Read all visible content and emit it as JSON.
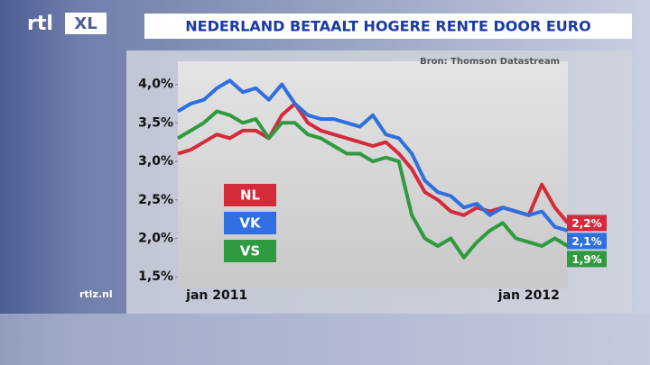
{
  "logo": {
    "text": "rtl",
    "badge": "XL"
  },
  "footer": "rtlz.nl",
  "chart_data": {
    "type": "line",
    "title": "NEDERLAND BETAALT HOGERE RENTE DOOR EURO",
    "source": "Bron: Thomson Datastream",
    "categories": [
      null,
      null,
      null,
      "jan 2011",
      null,
      null,
      null,
      null,
      null,
      null,
      null,
      null,
      null,
      null,
      null,
      null,
      null,
      null,
      null,
      null,
      null,
      null,
      null,
      null,
      null,
      null,
      null,
      "jan 2012",
      null,
      null,
      null
    ],
    "ylim": [
      1.35,
      4.3
    ],
    "yticks": [
      {
        "value": 1.5,
        "label": "1,5%"
      },
      {
        "value": 2.0,
        "label": "2,0%"
      },
      {
        "value": 2.5,
        "label": "2,5%"
      },
      {
        "value": 3.0,
        "label": "3,0%"
      },
      {
        "value": 3.5,
        "label": "3,5%"
      },
      {
        "value": 4.0,
        "label": "4,0%"
      }
    ],
    "grid": false,
    "series": [
      {
        "name": "NL",
        "color": "#d42b3c",
        "values": [
          3.1,
          3.15,
          3.25,
          3.35,
          3.3,
          3.4,
          3.4,
          3.3,
          3.6,
          3.75,
          3.5,
          3.4,
          3.35,
          3.3,
          3.25,
          3.2,
          3.25,
          3.1,
          2.9,
          2.6,
          2.5,
          2.35,
          2.3,
          2.4,
          2.35,
          2.4,
          2.35,
          2.3,
          2.7,
          2.4,
          2.2
        ],
        "value_labels": [
          null,
          null,
          null,
          null,
          null,
          null,
          null,
          null,
          null,
          null,
          null,
          null,
          null,
          null,
          null,
          null,
          null,
          null,
          null,
          null,
          null,
          null,
          null,
          null,
          null,
          null,
          null,
          null,
          null,
          null,
          "2,2%"
        ]
      },
      {
        "name": "VK",
        "color": "#2f6fe0",
        "values": [
          3.65,
          3.75,
          3.8,
          3.95,
          4.05,
          3.9,
          3.95,
          3.8,
          4.0,
          3.75,
          3.6,
          3.55,
          3.55,
          3.5,
          3.45,
          3.6,
          3.35,
          3.3,
          3.1,
          2.75,
          2.6,
          2.55,
          2.4,
          2.45,
          2.3,
          2.4,
          2.35,
          2.3,
          2.35,
          2.15,
          2.1
        ],
        "value_labels": [
          null,
          null,
          null,
          null,
          null,
          null,
          null,
          null,
          null,
          null,
          null,
          null,
          null,
          null,
          null,
          null,
          null,
          null,
          null,
          null,
          null,
          null,
          null,
          null,
          null,
          null,
          null,
          null,
          null,
          null,
          "2,1%"
        ]
      },
      {
        "name": "VS",
        "color": "#2f9a40",
        "values": [
          3.3,
          3.4,
          3.5,
          3.65,
          3.6,
          3.5,
          3.55,
          3.3,
          3.5,
          3.5,
          3.35,
          3.3,
          3.2,
          3.1,
          3.1,
          3.0,
          3.05,
          3.0,
          2.3,
          2.0,
          1.9,
          2.0,
          1.75,
          1.95,
          2.1,
          2.2,
          2.0,
          1.95,
          1.9,
          2.0,
          1.9
        ],
        "value_labels": [
          null,
          null,
          null,
          null,
          null,
          null,
          null,
          null,
          null,
          null,
          null,
          null,
          null,
          null,
          null,
          null,
          null,
          null,
          null,
          null,
          null,
          null,
          null,
          null,
          null,
          null,
          null,
          null,
          null,
          null,
          "1,9%"
        ]
      }
    ]
  }
}
